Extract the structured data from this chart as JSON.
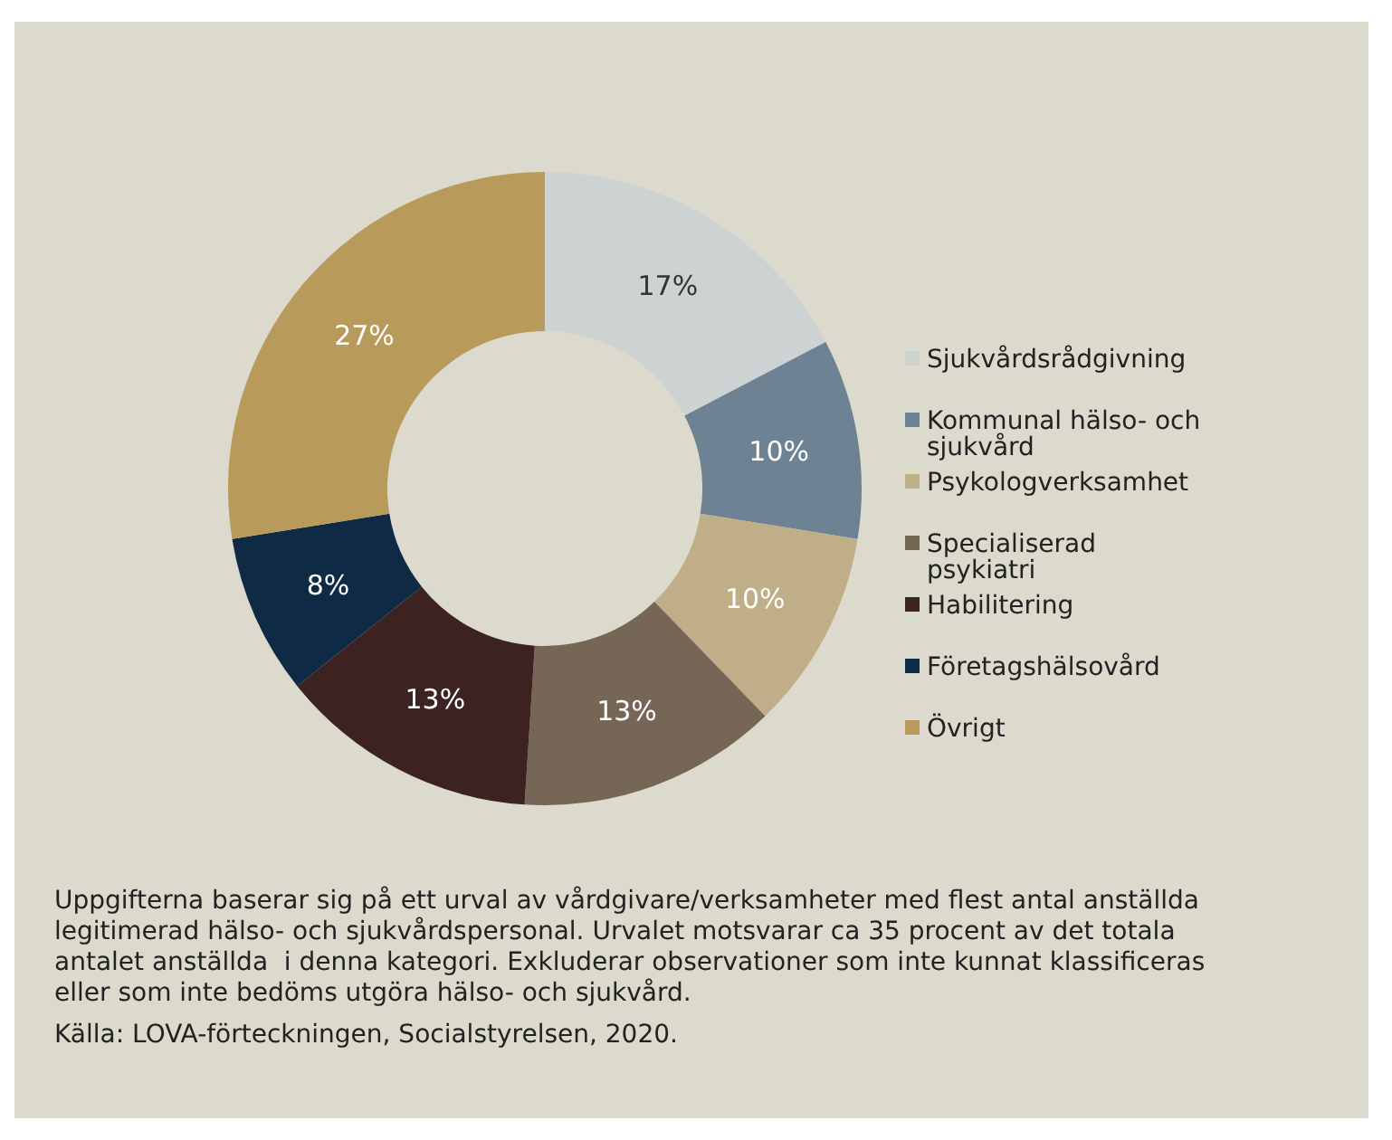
{
  "chart_data": {
    "type": "donut",
    "categories": [
      "Sjukvårdsrådgivning",
      "Kommunal hälso- och sjukvård",
      "Psykologverksamhet",
      "Specialiserad psykiatri",
      "Habilitering",
      "Företagshälsovård",
      "Övrigt"
    ],
    "values": [
      17,
      10,
      10,
      13,
      13,
      8,
      27
    ],
    "colors": [
      "#cdd3d3",
      "#6d8393",
      "#bfae88",
      "#756656",
      "#3d2222",
      "#0f2a44",
      "#b89b5a"
    ],
    "value_labels": [
      "17%",
      "10%",
      "10%",
      "13%",
      "13%",
      "8%",
      "27%"
    ],
    "legend": "right",
    "annotations": [
      "Uppgifterna baserar sig på ett urval av vårdgivare/verksamheter med flest antal anställda  legitimerad hälso- och sjukvårdspersonal. Urvalet motsvarar ca 35 procent av det totala antalet anställda  i denna kategori. Exkluderar observationer som inte kunnat klassificeras eller som inte bedöms utgöra hälso- och sjukvård.",
      "Källa: LOVA-förteckningen, Socialstyrelsen, 2020."
    ]
  }
}
